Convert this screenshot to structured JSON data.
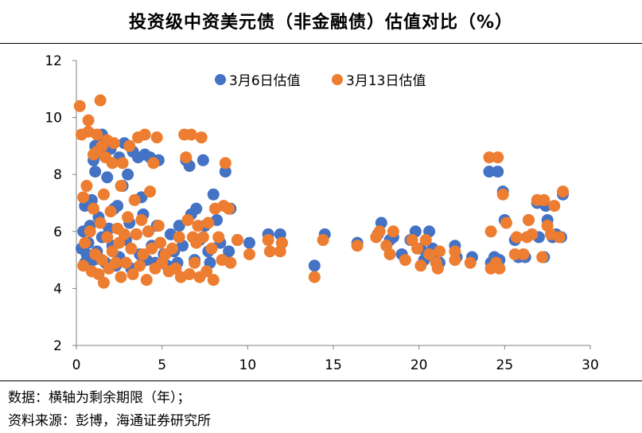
{
  "title": "投资级中资美元债（非金融债）估值对比（%）",
  "notes": {
    "line1": "数据：横轴为剩余期限（年）；",
    "line2": "资料来源：彭博，海通证券研究所"
  },
  "colors": {
    "series1": "#4472C4",
    "series2": "#ED7D31",
    "axis": "#808080",
    "text": "#000000"
  },
  "chart_data": {
    "type": "scatter",
    "xlim": [
      0,
      30
    ],
    "ylim": [
      2,
      12
    ],
    "xticks": [
      0,
      5,
      10,
      15,
      20,
      25,
      30
    ],
    "yticks": [
      2,
      4,
      6,
      8,
      10,
      12
    ],
    "grid": false,
    "legend_position": "top-center",
    "series": [
      {
        "name": "3月6日估值",
        "points": [
          [
            0.3,
            5.4
          ],
          [
            0.4,
            6.0
          ],
          [
            0.5,
            4.9
          ],
          [
            0.5,
            6.9
          ],
          [
            0.6,
            5.2
          ],
          [
            0.7,
            5.6
          ],
          [
            0.8,
            6.2
          ],
          [
            0.9,
            7.1
          ],
          [
            1.0,
            5.0
          ],
          [
            1.0,
            8.5
          ],
          [
            1.1,
            8.1
          ],
          [
            1.1,
            9.0
          ],
          [
            1.2,
            5.3
          ],
          [
            1.3,
            6.5
          ],
          [
            1.4,
            9.1
          ],
          [
            1.5,
            9.4
          ],
          [
            1.5,
            5.8
          ],
          [
            1.6,
            8.7
          ],
          [
            1.7,
            4.9
          ],
          [
            1.8,
            7.9
          ],
          [
            1.9,
            6.1
          ],
          [
            2.0,
            8.9
          ],
          [
            2.1,
            5.5
          ],
          [
            2.2,
            6.8
          ],
          [
            2.3,
            4.8
          ],
          [
            2.4,
            6.9
          ],
          [
            2.5,
            8.6
          ],
          [
            2.5,
            5.1
          ],
          [
            2.7,
            7.6
          ],
          [
            2.8,
            9.1
          ],
          [
            2.9,
            5.7
          ],
          [
            3.0,
            8.0
          ],
          [
            3.1,
            6.3
          ],
          [
            3.2,
            4.7
          ],
          [
            3.3,
            8.8
          ],
          [
            3.5,
            5.9
          ],
          [
            3.6,
            8.6
          ],
          [
            3.7,
            5.2
          ],
          [
            3.8,
            7.2
          ],
          [
            3.9,
            6.6
          ],
          [
            4.0,
            8.7
          ],
          [
            4.1,
            5.0
          ],
          [
            4.2,
            6.0
          ],
          [
            4.3,
            8.6
          ],
          [
            4.4,
            5.5
          ],
          [
            4.6,
            4.9
          ],
          [
            4.7,
            6.2
          ],
          [
            4.8,
            8.5
          ],
          [
            4.9,
            5.6
          ],
          [
            5.1,
            5.2
          ],
          [
            5.3,
            4.8
          ],
          [
            5.5,
            5.9
          ],
          [
            5.7,
            5.3
          ],
          [
            5.9,
            4.9
          ],
          [
            6.0,
            6.2
          ],
          [
            6.2,
            5.5
          ],
          [
            6.4,
            8.5
          ],
          [
            6.6,
            8.3
          ],
          [
            6.7,
            6.6
          ],
          [
            6.9,
            5.0
          ],
          [
            7.0,
            6.8
          ],
          [
            7.2,
            5.7
          ],
          [
            7.4,
            8.5
          ],
          [
            7.5,
            6.2
          ],
          [
            7.7,
            5.3
          ],
          [
            7.8,
            4.9
          ],
          [
            8.0,
            7.3
          ],
          [
            8.2,
            6.4
          ],
          [
            8.4,
            5.6
          ],
          [
            8.7,
            8.1
          ],
          [
            8.9,
            5.3
          ],
          [
            9.0,
            6.8
          ],
          [
            9.4,
            5.7
          ],
          [
            10.1,
            5.6
          ],
          [
            11.2,
            5.9
          ],
          [
            11.9,
            5.9
          ],
          [
            12.0,
            5.6
          ],
          [
            13.9,
            4.8
          ],
          [
            14.5,
            5.9
          ],
          [
            16.4,
            5.6
          ],
          [
            17.6,
            5.9
          ],
          [
            17.8,
            6.3
          ],
          [
            18.3,
            5.7
          ],
          [
            18.5,
            5.8
          ],
          [
            19.0,
            5.2
          ],
          [
            19.5,
            5.7
          ],
          [
            19.8,
            6.0
          ],
          [
            20.1,
            5.4
          ],
          [
            20.3,
            5.0
          ],
          [
            20.6,
            6.0
          ],
          [
            20.8,
            5.4
          ],
          [
            21.0,
            5.0
          ],
          [
            21.2,
            4.9
          ],
          [
            22.1,
            5.5
          ],
          [
            22.2,
            5.1
          ],
          [
            23.1,
            5.1
          ],
          [
            24.1,
            8.1
          ],
          [
            24.2,
            4.9
          ],
          [
            24.4,
            5.1
          ],
          [
            24.6,
            8.1
          ],
          [
            24.7,
            5.0
          ],
          [
            24.9,
            7.4
          ],
          [
            25.0,
            6.4
          ],
          [
            25.6,
            5.7
          ],
          [
            25.8,
            5.1
          ],
          [
            26.2,
            5.1
          ],
          [
            26.4,
            6.4
          ],
          [
            26.9,
            7.0
          ],
          [
            27.0,
            5.8
          ],
          [
            27.3,
            5.1
          ],
          [
            27.4,
            6.9
          ],
          [
            27.5,
            6.4
          ],
          [
            27.8,
            5.8
          ],
          [
            28.0,
            5.9
          ],
          [
            28.3,
            5.8
          ],
          [
            28.4,
            7.3
          ]
        ]
      },
      {
        "name": "3月13日估值",
        "points": [
          [
            0.2,
            10.4
          ],
          [
            0.3,
            9.4
          ],
          [
            0.4,
            4.8
          ],
          [
            0.4,
            7.2
          ],
          [
            0.5,
            5.6
          ],
          [
            0.6,
            7.6
          ],
          [
            0.7,
            9.9
          ],
          [
            0.7,
            9.5
          ],
          [
            0.8,
            6.0
          ],
          [
            0.9,
            4.6
          ],
          [
            1.0,
            6.8
          ],
          [
            1.0,
            8.7
          ],
          [
            1.1,
            5.2
          ],
          [
            1.2,
            8.8
          ],
          [
            1.2,
            9.4
          ],
          [
            1.3,
            4.5
          ],
          [
            1.4,
            6.3
          ],
          [
            1.4,
            10.6
          ],
          [
            1.5,
            9.0
          ],
          [
            1.5,
            5.0
          ],
          [
            1.6,
            7.3
          ],
          [
            1.6,
            4.2
          ],
          [
            1.7,
            8.6
          ],
          [
            1.8,
            5.8
          ],
          [
            1.8,
            9.2
          ],
          [
            1.9,
            4.7
          ],
          [
            2.0,
            6.7
          ],
          [
            2.1,
            5.3
          ],
          [
            2.1,
            8.4
          ],
          [
            2.2,
            9.1
          ],
          [
            2.3,
            4.9
          ],
          [
            2.4,
            6.1
          ],
          [
            2.5,
            5.6
          ],
          [
            2.6,
            7.6
          ],
          [
            2.6,
            4.4
          ],
          [
            2.7,
            8.4
          ],
          [
            2.8,
            5.9
          ],
          [
            2.9,
            4.9
          ],
          [
            3.0,
            6.5
          ],
          [
            3.1,
            9.0
          ],
          [
            3.2,
            5.4
          ],
          [
            3.3,
            4.5
          ],
          [
            3.4,
            7.1
          ],
          [
            3.5,
            5.9
          ],
          [
            3.6,
            9.3
          ],
          [
            3.7,
            4.8
          ],
          [
            3.8,
            6.4
          ],
          [
            3.9,
            5.2
          ],
          [
            4.0,
            9.4
          ],
          [
            4.1,
            4.3
          ],
          [
            4.2,
            6.0
          ],
          [
            4.3,
            7.4
          ],
          [
            4.4,
            5.4
          ],
          [
            4.5,
            8.4
          ],
          [
            4.6,
            4.7
          ],
          [
            4.7,
            9.3
          ],
          [
            4.8,
            6.2
          ],
          [
            4.9,
            5.6
          ],
          [
            5.0,
            4.9
          ],
          [
            5.2,
            5.2
          ],
          [
            5.4,
            4.6
          ],
          [
            5.6,
            5.4
          ],
          [
            5.8,
            4.7
          ],
          [
            6.0,
            5.8
          ],
          [
            6.1,
            4.4
          ],
          [
            6.3,
            9.4
          ],
          [
            6.4,
            8.6
          ],
          [
            6.5,
            6.4
          ],
          [
            6.6,
            4.5
          ],
          [
            6.7,
            9.4
          ],
          [
            6.8,
            5.8
          ],
          [
            6.9,
            4.9
          ],
          [
            7.0,
            5.6
          ],
          [
            7.1,
            6.2
          ],
          [
            7.2,
            4.4
          ],
          [
            7.3,
            9.3
          ],
          [
            7.4,
            5.8
          ],
          [
            7.6,
            4.6
          ],
          [
            7.7,
            6.3
          ],
          [
            7.9,
            5.4
          ],
          [
            8.0,
            4.3
          ],
          [
            8.1,
            6.8
          ],
          [
            8.3,
            5.8
          ],
          [
            8.5,
            5.0
          ],
          [
            8.6,
            6.9
          ],
          [
            8.7,
            8.4
          ],
          [
            8.9,
            6.8
          ],
          [
            9.0,
            4.9
          ],
          [
            9.4,
            5.7
          ],
          [
            10.1,
            5.2
          ],
          [
            11.2,
            5.7
          ],
          [
            11.3,
            5.3
          ],
          [
            11.9,
            5.3
          ],
          [
            12.0,
            5.6
          ],
          [
            13.9,
            4.4
          ],
          [
            14.4,
            5.7
          ],
          [
            16.4,
            5.5
          ],
          [
            17.5,
            5.8
          ],
          [
            17.7,
            6.0
          ],
          [
            18.1,
            5.5
          ],
          [
            18.3,
            5.2
          ],
          [
            18.5,
            6.0
          ],
          [
            19.2,
            5.0
          ],
          [
            19.6,
            5.7
          ],
          [
            19.9,
            5.4
          ],
          [
            20.1,
            4.8
          ],
          [
            20.4,
            5.7
          ],
          [
            20.6,
            5.2
          ],
          [
            21.0,
            4.9
          ],
          [
            21.1,
            4.7
          ],
          [
            21.2,
            5.3
          ],
          [
            22.1,
            5.3
          ],
          [
            22.1,
            5.0
          ],
          [
            23.0,
            4.9
          ],
          [
            24.1,
            8.6
          ],
          [
            24.2,
            4.7
          ],
          [
            24.2,
            6.0
          ],
          [
            24.5,
            4.9
          ],
          [
            24.6,
            8.6
          ],
          [
            24.7,
            4.7
          ],
          [
            24.9,
            7.3
          ],
          [
            25.1,
            6.3
          ],
          [
            25.6,
            5.2
          ],
          [
            25.7,
            5.8
          ],
          [
            26.1,
            5.2
          ],
          [
            26.3,
            5.8
          ],
          [
            26.4,
            6.4
          ],
          [
            26.6,
            5.9
          ],
          [
            26.9,
            7.1
          ],
          [
            27.2,
            5.1
          ],
          [
            27.3,
            7.1
          ],
          [
            27.5,
            6.2
          ],
          [
            27.7,
            5.9
          ],
          [
            27.9,
            6.9
          ],
          [
            28.2,
            5.8
          ],
          [
            28.4,
            7.4
          ]
        ]
      }
    ]
  }
}
